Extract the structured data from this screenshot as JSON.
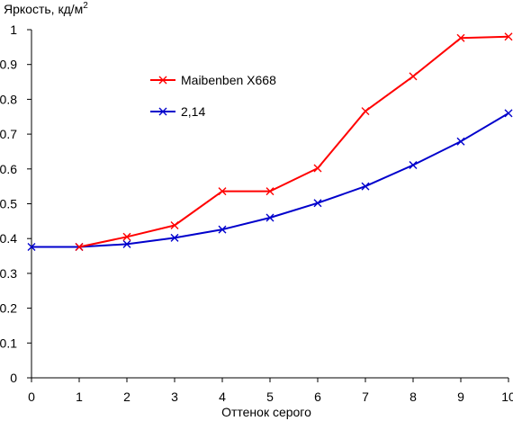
{
  "chart_data": {
    "type": "line",
    "title": "",
    "xlabel": "Оттенок серого",
    "ylabel": "Яркость, кд/м",
    "ylabel_superscript": "2",
    "xlim": [
      0,
      10
    ],
    "ylim": [
      0,
      1
    ],
    "grid": false,
    "legend_position": "top-center",
    "x_ticks": [
      "0",
      "1",
      "2",
      "3",
      "4",
      "5",
      "6",
      "7",
      "8",
      "9",
      "10"
    ],
    "y_ticks": [
      "0",
      "0.1",
      "0.2",
      "0.3",
      "0.4",
      "0.5",
      "0.6",
      "0.7",
      "0.8",
      "0.9",
      "1"
    ],
    "x": [
      0,
      1,
      2,
      3,
      4,
      5,
      6,
      7,
      8,
      9,
      10
    ],
    "series": [
      {
        "name": "Maibenben X668",
        "color": "#ff0000",
        "marker": "x",
        "x": [
          1,
          2,
          3,
          4,
          5,
          6,
          7,
          8,
          9,
          10
        ],
        "values": [
          0.376,
          0.405,
          0.438,
          0.536,
          0.536,
          0.602,
          0.766,
          0.866,
          0.976,
          0.98
        ]
      },
      {
        "name": "2,14",
        "color": "#0000cc",
        "marker": "x",
        "x": [
          0,
          1,
          2,
          3,
          4,
          5,
          6,
          7,
          8,
          9,
          10
        ],
        "values": [
          0.376,
          0.376,
          0.384,
          0.402,
          0.426,
          0.46,
          0.502,
          0.55,
          0.611,
          0.679,
          0.76
        ]
      }
    ]
  }
}
